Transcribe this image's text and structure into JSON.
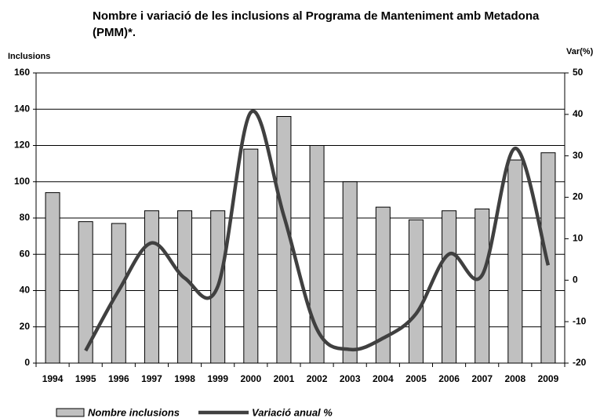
{
  "chart_data": {
    "type": "bar_line",
    "title": "Nombre i variació de les inclusions al Programa de Manteniment amb Metadona (PMM)*.",
    "ylabel": "Inclusions",
    "y2label": "Var(%)",
    "categories": [
      "1994",
      "1995",
      "1996",
      "1997",
      "1998",
      "1999",
      "2000",
      "2001",
      "2002",
      "2003",
      "2004",
      "2005",
      "2006",
      "2007",
      "2008",
      "2009"
    ],
    "series": [
      {
        "name": "Nombre inclusions",
        "type": "bar",
        "color": "#c0c0c0",
        "values": [
          94,
          78,
          77,
          84,
          84,
          84,
          118,
          136,
          120,
          100,
          86,
          79,
          84,
          85,
          112,
          116
        ]
      },
      {
        "name": "Variació anual %",
        "type": "line",
        "axis": "y2",
        "color": "#404040",
        "values": [
          null,
          -17,
          -2.5,
          9,
          0.5,
          -1.5,
          40.5,
          15.5,
          -11.8,
          -16.7,
          -14,
          -8.1,
          6.3,
          1.2,
          31.8,
          3.6
        ]
      }
    ],
    "ylim": [
      0,
      160
    ],
    "yticks": [
      0,
      20,
      40,
      60,
      80,
      100,
      120,
      140,
      160
    ],
    "y2lim": [
      -20,
      50
    ],
    "y2ticks": [
      -20,
      -10,
      0,
      10,
      20,
      30,
      40,
      50
    ],
    "grid": true,
    "legend": "bottom"
  }
}
